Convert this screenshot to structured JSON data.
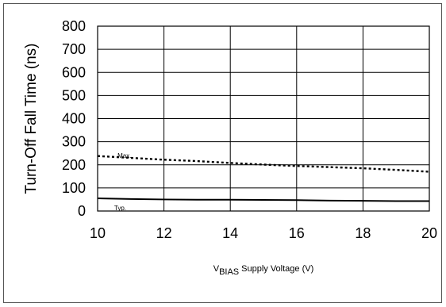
{
  "chart_data": {
    "type": "line",
    "title": "",
    "xlabel": {
      "prefix": "V",
      "subscript": "BIAS",
      "suffix": "Supply Voltage (V)"
    },
    "ylabel": "Turn-Off Fall Time (ns)",
    "xlim": [
      10,
      20
    ],
    "ylim": [
      0,
      800
    ],
    "x_ticks": [
      10,
      12,
      14,
      16,
      18,
      20
    ],
    "y_ticks": [
      0,
      100,
      200,
      300,
      400,
      500,
      600,
      700,
      800
    ],
    "grid": true,
    "legend": "none",
    "series": [
      {
        "name": "Max.",
        "style": "dotted",
        "color": "#000000",
        "label_x": 10.6,
        "label_y": 240,
        "x": [
          10,
          11,
          12,
          13,
          14,
          15,
          16,
          17,
          18,
          19,
          20
        ],
        "y": [
          238,
          230,
          222,
          216,
          208,
          201,
          195,
          190,
          185,
          178,
          170
        ]
      },
      {
        "name": "Typ.",
        "style": "solid",
        "color": "#000000",
        "label_x": 10.5,
        "label_y": 14,
        "x": [
          10,
          11,
          12,
          13,
          14,
          15,
          16,
          17,
          18,
          19,
          20
        ],
        "y": [
          55,
          52,
          50,
          49,
          49,
          48,
          47,
          45,
          44,
          43,
          43
        ]
      }
    ]
  }
}
